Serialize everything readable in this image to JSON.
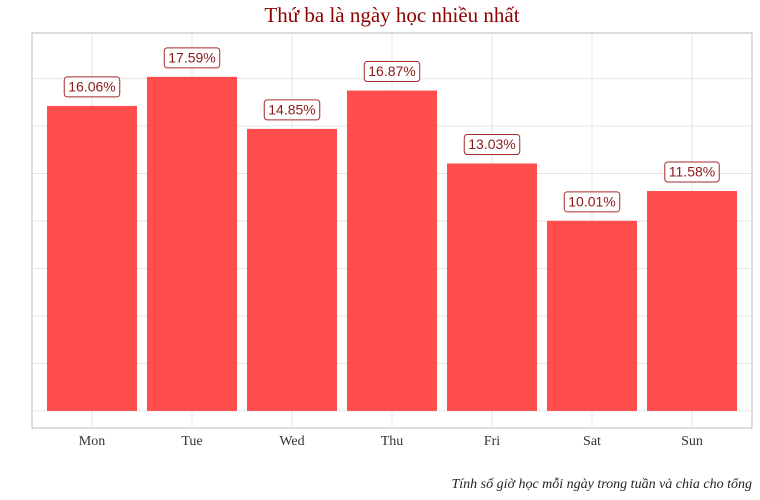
{
  "chart_data": {
    "type": "bar",
    "title": "Thứ ba là ngày học nhiều nhất",
    "caption": "Tính số giờ học mỗi ngày trong tuần và chia cho tổng",
    "categories": [
      "Mon",
      "Tue",
      "Wed",
      "Thu",
      "Fri",
      "Sat",
      "Sun"
    ],
    "values": [
      16.06,
      17.59,
      14.85,
      16.87,
      13.03,
      10.01,
      11.58
    ],
    "value_labels": [
      "16.06%",
      "17.59%",
      "14.85%",
      "16.87%",
      "13.03%",
      "10.01%",
      "11.58%"
    ],
    "color": "#ff4c4c",
    "ylim": [
      -0.9,
      19.9
    ],
    "yticks": [
      0,
      2.5,
      5,
      7.5,
      10,
      12.5,
      15,
      17.5
    ],
    "grid": true
  }
}
